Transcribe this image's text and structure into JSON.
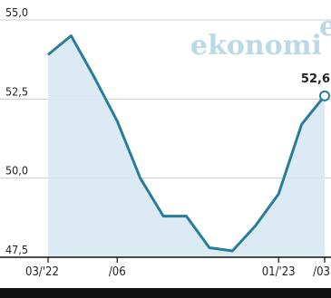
{
  "brand": {
    "name": "ekonomi",
    "mark": "e"
  },
  "chart_data": {
    "type": "area",
    "title": "",
    "xlabel": "",
    "ylabel": "",
    "ylim": [
      47.5,
      55.0
    ],
    "yticks": [
      55.0,
      52.5,
      50.0,
      47.5
    ],
    "ytick_labels": [
      "55,0",
      "52,5",
      "50,0",
      "47,5"
    ],
    "xtick_labels": [
      "03/'22",
      "/06",
      "01/'23",
      "/03"
    ],
    "x": [
      "03/'22",
      "04/'22",
      "05/'22",
      "06/'22",
      "07/'22",
      "08/'22",
      "09/'22",
      "10/'22",
      "11/'22",
      "12/'22",
      "01/'23",
      "02/'23",
      "03/'23"
    ],
    "values": [
      53.9,
      54.5,
      53.2,
      51.8,
      50.0,
      48.8,
      48.8,
      47.8,
      47.7,
      48.5,
      49.5,
      51.7,
      52.6
    ],
    "last_label": "52,6",
    "grid": true,
    "colors": {
      "line": "#2a7d9a",
      "fill": "#d6e8f1",
      "grid": "#cccccc",
      "axis": "#111111"
    }
  }
}
